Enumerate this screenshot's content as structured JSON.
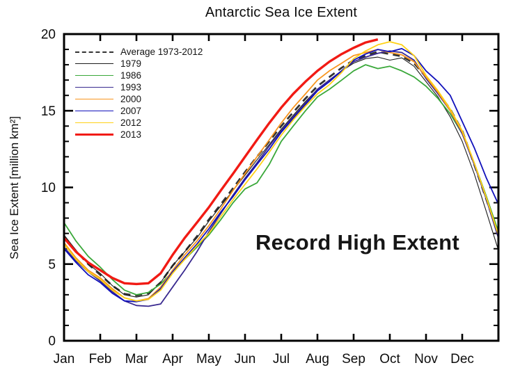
{
  "chart_data": {
    "type": "line",
    "title": "Antarctic Sea Ice Extent",
    "ylabel": "Sea Ice Extent [million km²]",
    "annotation": "Record High Extent",
    "x_tick_labels": [
      "Jan",
      "Feb",
      "Mar",
      "Apr",
      "May",
      "Jun",
      "Jul",
      "Aug",
      "Sep",
      "Oct",
      "Nov",
      "Dec"
    ],
    "y_tick_values": [
      0,
      5,
      10,
      15,
      20
    ],
    "ylim": [
      0,
      20
    ],
    "xlim_months": [
      0,
      12
    ],
    "grid": "off",
    "legend_position": "upper-left-inside",
    "axis_color": "#000000",
    "x_months": [
      0,
      0.33,
      0.67,
      1,
      1.33,
      1.67,
      2,
      2.33,
      2.67,
      3,
      3.33,
      3.67,
      4,
      4.33,
      4.67,
      5,
      5.33,
      5.67,
      6,
      6.33,
      6.67,
      7,
      7.33,
      7.67,
      8,
      8.33,
      8.67,
      9,
      9.33,
      9.67,
      10,
      10.33,
      10.67,
      11,
      11.33,
      11.67,
      12
    ],
    "series": [
      {
        "name": "Average 1973-2012",
        "color": "#333333",
        "width": 2.8,
        "dash": "10 7",
        "values": [
          6.8,
          5.85,
          5.0,
          4.3,
          3.6,
          3.05,
          2.95,
          3.1,
          3.8,
          4.9,
          5.8,
          6.8,
          7.9,
          8.9,
          9.95,
          11.0,
          12.0,
          13.0,
          14.0,
          14.9,
          15.8,
          16.6,
          17.2,
          17.8,
          18.3,
          18.6,
          18.85,
          18.7,
          18.55,
          18.1,
          17.2,
          16.2,
          15.1,
          13.7,
          11.5,
          9.2,
          6.9
        ]
      },
      {
        "name": "1979",
        "color": "#1c1c1c",
        "width": 1.1,
        "dash": "",
        "values": [
          6.9,
          5.9,
          5.0,
          4.4,
          3.6,
          3.0,
          2.85,
          3.0,
          3.8,
          4.9,
          5.8,
          6.7,
          7.8,
          8.8,
          9.8,
          10.8,
          11.8,
          12.8,
          13.8,
          14.7,
          15.6,
          16.4,
          17.0,
          17.6,
          18.1,
          18.4,
          18.5,
          18.3,
          18.45,
          17.9,
          16.9,
          15.9,
          14.6,
          13.0,
          10.9,
          8.4,
          5.9
        ]
      },
      {
        "name": "1986",
        "color": "#3aa83a",
        "width": 1.8,
        "dash": "",
        "values": [
          7.7,
          6.5,
          5.5,
          4.8,
          4.0,
          3.3,
          3.0,
          3.15,
          3.7,
          4.5,
          5.3,
          6.1,
          6.9,
          7.9,
          9.0,
          9.9,
          10.3,
          11.5,
          13.0,
          14.0,
          15.0,
          15.9,
          16.4,
          17.0,
          17.6,
          18.0,
          17.75,
          17.9,
          17.6,
          17.2,
          16.6,
          15.8,
          14.8,
          13.5,
          11.6,
          9.4,
          7.1
        ]
      },
      {
        "name": "1993",
        "color": "#38288f",
        "width": 1.8,
        "dash": "",
        "values": [
          6.1,
          5.2,
          4.5,
          3.9,
          3.2,
          2.6,
          2.3,
          2.25,
          2.4,
          3.5,
          4.6,
          5.8,
          7.1,
          8.3,
          9.5,
          10.6,
          11.6,
          12.7,
          13.7,
          14.6,
          15.5,
          16.4,
          17.0,
          17.6,
          18.2,
          18.5,
          18.75,
          18.9,
          18.8,
          18.3,
          17.1,
          16.1,
          15.0,
          13.5,
          11.5,
          9.2,
          6.7
        ]
      },
      {
        "name": "2000",
        "color": "#f8951d",
        "width": 1.8,
        "dash": "",
        "values": [
          6.4,
          5.4,
          4.6,
          4.1,
          3.4,
          2.8,
          2.6,
          2.75,
          3.5,
          4.6,
          5.6,
          6.5,
          7.5,
          8.6,
          9.8,
          10.9,
          12.0,
          13.1,
          14.2,
          15.2,
          16.1,
          17.0,
          17.6,
          18.1,
          18.6,
          18.8,
          19.0,
          18.8,
          18.65,
          18.2,
          17.2,
          16.2,
          15.0,
          13.6,
          11.6,
          9.3,
          6.9
        ]
      },
      {
        "name": "2007",
        "color": "#1010bb",
        "width": 1.8,
        "dash": "",
        "values": [
          6.0,
          5.1,
          4.3,
          3.8,
          3.1,
          2.6,
          2.55,
          2.7,
          3.4,
          4.5,
          5.4,
          6.3,
          7.3,
          8.4,
          9.4,
          10.5,
          11.5,
          12.5,
          13.6,
          14.5,
          15.4,
          16.3,
          16.9,
          17.6,
          18.3,
          18.7,
          19.0,
          18.85,
          19.05,
          18.6,
          17.6,
          16.9,
          16.0,
          14.3,
          12.6,
          10.6,
          8.9
        ]
      },
      {
        "name": "2012",
        "color": "#ffd117",
        "width": 1.8,
        "dash": "",
        "values": [
          6.3,
          5.3,
          4.5,
          4.0,
          3.3,
          2.8,
          2.6,
          2.7,
          3.3,
          4.4,
          5.3,
          6.2,
          7.0,
          8.1,
          9.2,
          10.2,
          11.2,
          12.3,
          13.4,
          14.4,
          15.3,
          16.1,
          16.7,
          17.5,
          18.4,
          18.9,
          19.3,
          19.5,
          19.3,
          18.6,
          17.3,
          16.3,
          15.1,
          13.7,
          11.6,
          9.3,
          6.9
        ]
      },
      {
        "name": "2013",
        "color": "#f11a14",
        "width": 3.4,
        "dash": "",
        "values": [
          6.7,
          5.8,
          5.1,
          4.6,
          4.1,
          3.75,
          3.7,
          3.75,
          4.4,
          5.6,
          6.7,
          7.7,
          8.7,
          9.8,
          10.9,
          12.0,
          13.1,
          14.2,
          15.2,
          16.1,
          16.9,
          17.6,
          18.2,
          18.7,
          19.1,
          19.45,
          19.65
        ]
      }
    ]
  }
}
